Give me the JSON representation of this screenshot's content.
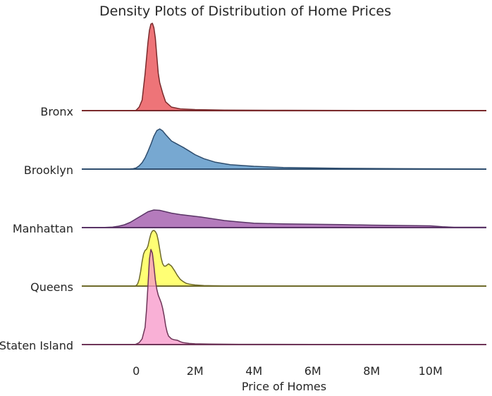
{
  "chart_data": {
    "type": "area",
    "title": "Density Plots of Distribution of Home Prices",
    "xlabel": "Price of Homes",
    "ylabel": "",
    "xlim": [
      -1850000,
      11900000
    ],
    "xticks": [
      {
        "value": 0,
        "label": "0"
      },
      {
        "value": 2000000,
        "label": "2M"
      },
      {
        "value": 4000000,
        "label": "4M"
      },
      {
        "value": 6000000,
        "label": "6M"
      },
      {
        "value": 8000000,
        "label": "8M"
      },
      {
        "value": 10000000,
        "label": "10M"
      }
    ],
    "grid": false,
    "legend": "none",
    "series": [
      {
        "name": "Bronx",
        "color": "#e8464b",
        "line": "#7a2a2c",
        "x": [
          -1850000,
          -50000,
          0,
          100000,
          200000,
          300000,
          400000,
          450000,
          500000,
          550000,
          600000,
          650000,
          700000,
          750000,
          800000,
          900000,
          1000000,
          1200000,
          1500000,
          2000000,
          3000000,
          5000000,
          8000000,
          11900000
        ],
        "y": [
          0,
          0,
          0.005,
          0.04,
          0.12,
          0.42,
          0.78,
          0.92,
          0.99,
          1.0,
          0.95,
          0.83,
          0.62,
          0.43,
          0.32,
          0.2,
          0.1,
          0.04,
          0.02,
          0.012,
          0.006,
          0.004,
          0.002,
          0.002
        ]
      },
      {
        "name": "Brooklyn",
        "color": "#4a8bc2",
        "line": "#2e4d6e",
        "x": [
          -1850000,
          -300000,
          -100000,
          0,
          100000,
          200000,
          300000,
          400000,
          500000,
          600000,
          700000,
          800000,
          900000,
          1000000,
          1200000,
          1400000,
          1600000,
          1800000,
          2000000,
          2300000,
          2700000,
          3200000,
          4000000,
          5000000,
          7000000,
          9000000,
          11900000
        ],
        "y": [
          0,
          0,
          0.01,
          0.03,
          0.08,
          0.16,
          0.28,
          0.44,
          0.62,
          0.82,
          0.96,
          1.0,
          0.95,
          0.86,
          0.7,
          0.62,
          0.54,
          0.45,
          0.36,
          0.26,
          0.17,
          0.11,
          0.07,
          0.04,
          0.02,
          0.01,
          0.005
        ]
      },
      {
        "name": "Manhattan",
        "color": "#9b4fa6",
        "line": "#5a3466",
        "x": [
          -1850000,
          -1200000,
          -800000,
          -600000,
          -400000,
          -200000,
          0,
          200000,
          400000,
          600000,
          800000,
          1000000,
          1200000,
          1500000,
          1800000,
          2200000,
          2600000,
          3000000,
          3500000,
          4000000,
          5000000,
          6000000,
          7000000,
          8000000,
          9000000,
          10000000,
          10400000,
          10800000,
          11900000
        ],
        "y": [
          0,
          0,
          0.03,
          0.08,
          0.16,
          0.3,
          0.5,
          0.7,
          0.9,
          1.0,
          0.98,
          0.9,
          0.82,
          0.74,
          0.68,
          0.6,
          0.5,
          0.4,
          0.32,
          0.25,
          0.21,
          0.19,
          0.17,
          0.14,
          0.12,
          0.1,
          0.05,
          0.02,
          0.02
        ]
      },
      {
        "name": "Queens",
        "color": "#ffff45",
        "line": "#6e6a2a",
        "x": [
          -1850000,
          -50000,
          0,
          50000,
          100000,
          150000,
          200000,
          250000,
          300000,
          350000,
          400000,
          450000,
          500000,
          550000,
          600000,
          650000,
          700000,
          750000,
          800000,
          850000,
          900000,
          950000,
          1000000,
          1050000,
          1100000,
          1200000,
          1300000,
          1400000,
          1500000,
          1600000,
          1700000,
          1800000,
          2000000,
          2300000,
          2600000,
          3000000,
          4000000,
          6000000,
          9000000,
          11900000
        ],
        "y": [
          0,
          0,
          0.01,
          0.04,
          0.12,
          0.26,
          0.44,
          0.58,
          0.64,
          0.66,
          0.72,
          0.84,
          0.94,
          0.99,
          1.0,
          0.98,
          0.93,
          0.82,
          0.66,
          0.5,
          0.4,
          0.36,
          0.36,
          0.38,
          0.4,
          0.36,
          0.28,
          0.19,
          0.12,
          0.08,
          0.05,
          0.035,
          0.02,
          0.01,
          0.006,
          0.004,
          0.003,
          0.002,
          0.001,
          0.001
        ]
      },
      {
        "name": "Staten Island",
        "color": "#f795c8",
        "line": "#6e3558",
        "x": [
          -1850000,
          -50000,
          0,
          100000,
          200000,
          300000,
          350000,
          400000,
          450000,
          500000,
          550000,
          600000,
          650000,
          700000,
          750000,
          800000,
          850000,
          900000,
          950000,
          1000000,
          1050000,
          1100000,
          1200000,
          1300000,
          1400000,
          1500000,
          1600000,
          1800000,
          2000000,
          2500000,
          3500000,
          6000000,
          11900000
        ],
        "y": [
          0,
          0,
          0.005,
          0.02,
          0.06,
          0.18,
          0.36,
          0.62,
          0.9,
          1.0,
          0.96,
          0.83,
          0.68,
          0.58,
          0.52,
          0.48,
          0.44,
          0.38,
          0.3,
          0.2,
          0.13,
          0.09,
          0.06,
          0.05,
          0.045,
          0.03,
          0.02,
          0.012,
          0.008,
          0.005,
          0.003,
          0.002,
          0.001
        ]
      }
    ]
  }
}
